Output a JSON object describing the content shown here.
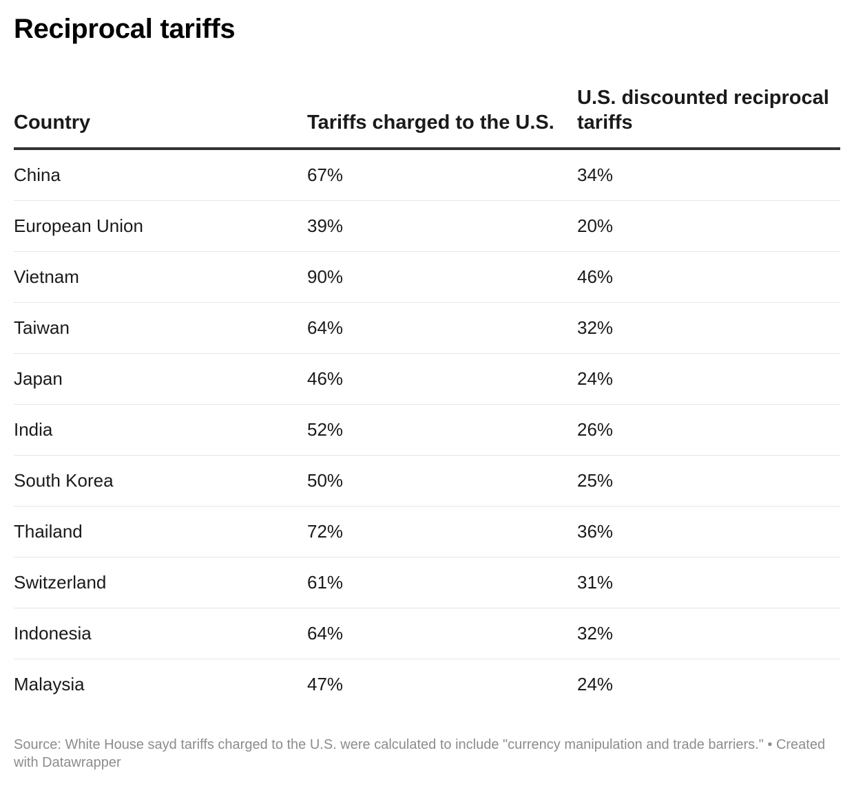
{
  "title": "Reciprocal tariffs",
  "columns": [
    "Country",
    "Tariffs charged to the U.S.",
    "U.S. discounted reciprocal tariffs"
  ],
  "rows": [
    [
      "China",
      "67%",
      "34%"
    ],
    [
      "European Union",
      "39%",
      "20%"
    ],
    [
      "Vietnam",
      "90%",
      "46%"
    ],
    [
      "Taiwan",
      "64%",
      "32%"
    ],
    [
      "Japan",
      "46%",
      "24%"
    ],
    [
      "India",
      "52%",
      "26%"
    ],
    [
      "South Korea",
      "50%",
      "25%"
    ],
    [
      "Thailand",
      "72%",
      "36%"
    ],
    [
      "Switzerland",
      "61%",
      "31%"
    ],
    [
      "Indonesia",
      "64%",
      "32%"
    ],
    [
      "Malaysia",
      "47%",
      "24%"
    ]
  ],
  "source": "Source: White House sayd tariffs charged to the U.S. were calculated to include \"currency manipulation and trade barriers.\" • Created with Datawrapper",
  "colors": {
    "text": "#1a1a1a",
    "header_rule": "#333333",
    "row_rule": "#e6e6e6",
    "source_text": "#8c8c8c"
  },
  "chart_data": {
    "type": "table",
    "title": "Reciprocal tariffs",
    "columns": [
      "Country",
      "Tariffs charged to the U.S.",
      "U.S. discounted reciprocal tariffs"
    ],
    "categories": [
      "China",
      "European Union",
      "Vietnam",
      "Taiwan",
      "Japan",
      "India",
      "South Korea",
      "Thailand",
      "Switzerland",
      "Indonesia",
      "Malaysia"
    ],
    "series": [
      {
        "name": "Tariffs charged to the U.S.",
        "values": [
          67,
          39,
          90,
          64,
          46,
          52,
          50,
          72,
          61,
          64,
          47
        ]
      },
      {
        "name": "U.S. discounted reciprocal tariffs",
        "values": [
          34,
          20,
          46,
          32,
          24,
          26,
          25,
          36,
          31,
          32,
          24
        ]
      }
    ]
  }
}
